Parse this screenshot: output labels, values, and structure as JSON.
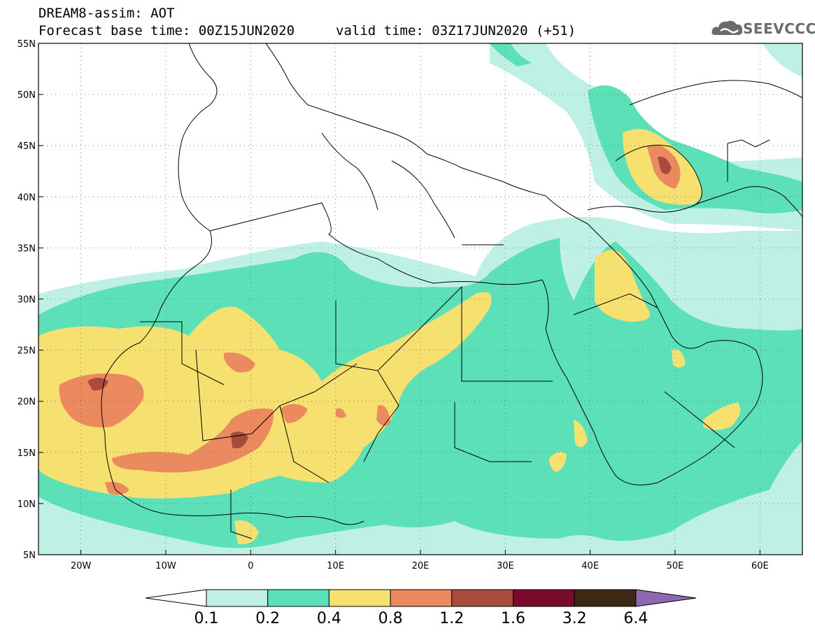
{
  "header": {
    "line1": "DREAM8-assim: AOT",
    "line2": "Forecast base time: 00Z15JUN2020",
    "line3": "valid time: 03Z17JUN2020 (+51)"
  },
  "logo": {
    "text": "SEEVCCC",
    "icon": "cloud-icon"
  },
  "map": {
    "lat_labels": [
      "55N",
      "50N",
      "45N",
      "40N",
      "35N",
      "30N",
      "25N",
      "20N",
      "15N",
      "10N",
      "5N"
    ],
    "lon_labels": [
      "20W",
      "10W",
      "0",
      "10E",
      "20E",
      "30E",
      "40E",
      "50E",
      "60E"
    ],
    "lon_range": [
      -25,
      65
    ],
    "lat_range": [
      5,
      55
    ]
  },
  "colorbar": {
    "labels": [
      "0.1",
      "0.2",
      "0.4",
      "0.8",
      "1.2",
      "1.6",
      "3.2",
      "6.4"
    ],
    "colors": [
      "#ffffff",
      "#bff0e6",
      "#5ce0b8",
      "#f5e070",
      "#eb8a5f",
      "#a84b3c",
      "#7a0a2b",
      "#3d2816",
      "#9068b0"
    ]
  },
  "colors": {
    "c1": "#bff0e6",
    "c2": "#5ce0b8",
    "c3": "#f5e070",
    "c4": "#eb8a5f",
    "c5": "#a84b3c"
  }
}
